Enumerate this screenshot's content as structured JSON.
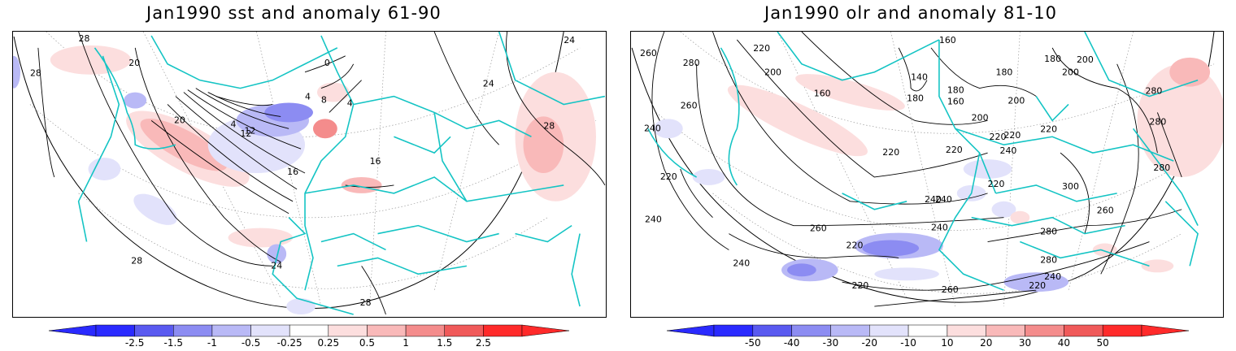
{
  "left_panel": {
    "title": "Jan1990 sst and anomaly 61-90",
    "contour_labels": [
      "28",
      "20",
      "28",
      "24",
      "20",
      "4",
      "8",
      "12",
      "16",
      "16",
      "0",
      "4",
      "4",
      "24",
      "28",
      "28",
      "24",
      "28",
      "12"
    ],
    "colorbar_ticks": [
      "-2.5",
      "-1.5",
      "-1",
      "-0.5",
      "-0.25",
      "0.25",
      "0.5",
      "1",
      "1.5",
      "2.5"
    ]
  },
  "right_panel": {
    "title": "Jan1990 olr and anomaly 81-10",
    "contour_labels": [
      "260",
      "280",
      "220",
      "160",
      "260",
      "240",
      "220",
      "200",
      "140",
      "160",
      "180",
      "180",
      "180",
      "160",
      "200",
      "200",
      "180",
      "200",
      "280",
      "220",
      "200",
      "220",
      "220",
      "240",
      "220",
      "220",
      "240",
      "280",
      "280",
      "300",
      "260",
      "240",
      "240",
      "220",
      "260",
      "280",
      "280",
      "240",
      "220",
      "220",
      "240",
      "260",
      "220",
      "240"
    ],
    "colorbar_ticks": [
      "-50",
      "-40",
      "-30",
      "-20",
      "-10",
      "10",
      "20",
      "30",
      "40",
      "50"
    ]
  },
  "colors": {
    "neg": [
      "#2a2aff",
      "#5a5af0",
      "#8c8cf2",
      "#b9b9f6",
      "#e2e2fb"
    ],
    "pos": [
      "#fcdede",
      "#f9b9b9",
      "#f48c8c",
      "#f05a5a",
      "#ff2a2a"
    ],
    "coast": "#14c4c4"
  }
}
